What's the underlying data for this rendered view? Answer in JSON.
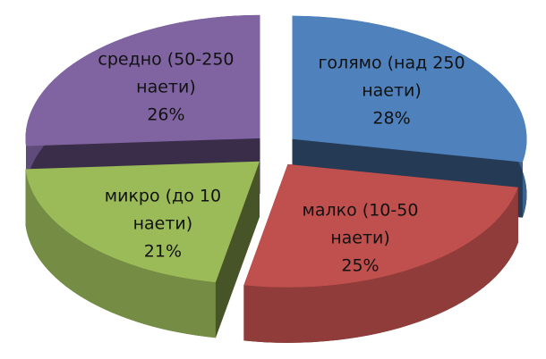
{
  "chart_data": {
    "type": "pie3d",
    "categories": [
      "голямо (над 250 наети)",
      "малко (10-50 наети)",
      "микро (до 10 наети)",
      "средно (50-250 наети)"
    ],
    "values": [
      28,
      25,
      21,
      26
    ],
    "value_labels": [
      "28%",
      "25%",
      "21%",
      "26%"
    ],
    "colors": [
      "#4f81bd",
      "#c0504d",
      "#9bbb59",
      "#8064a2"
    ]
  }
}
